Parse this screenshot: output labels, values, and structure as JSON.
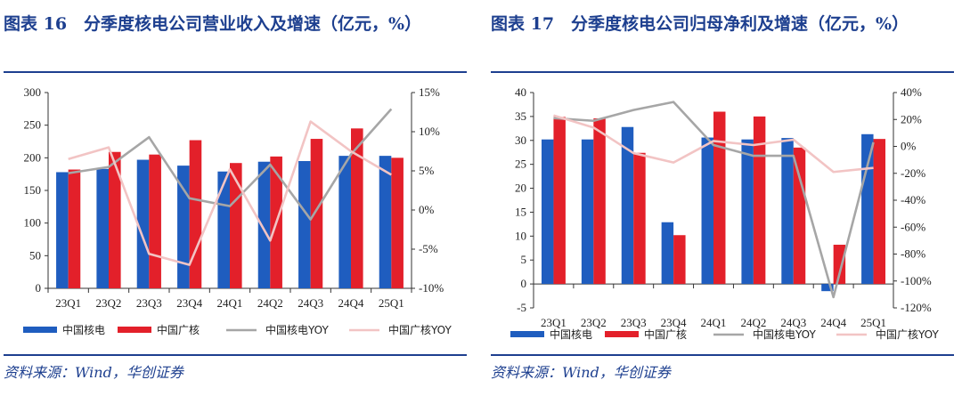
{
  "charts": [
    {
      "figure_title": "图表 16　分季度核电公司营业收入及增速（亿元，%）",
      "source": "资料来源：Wind，华创证券",
      "colors": {
        "cnnp": "#1f5dbf",
        "cgn": "#e3202a",
        "cnnp_yoy": "#a6a6a6",
        "cgn_yoy": "#f2c4c4"
      },
      "chart_data": {
        "type": "bar",
        "categories": [
          "23Q1",
          "23Q2",
          "23Q3",
          "23Q4",
          "24Q1",
          "24Q2",
          "24Q3",
          "24Q4",
          "25Q1"
        ],
        "series": [
          {
            "name": "中国核电",
            "kind": "bar",
            "axis": "left",
            "values": [
              178,
              183,
              197,
              188,
              179,
              194,
              195,
              203,
              203
            ]
          },
          {
            "name": "中国广核",
            "kind": "bar",
            "axis": "left",
            "values": [
              182,
              209,
              205,
              227,
              192,
              202,
              229,
              245,
              200
            ]
          },
          {
            "name": "中国核电YOY",
            "kind": "line",
            "axis": "right",
            "values": [
              4.7,
              5.5,
              9.3,
              1.5,
              0.5,
              5.8,
              -1.2,
              7.1,
              12.9
            ]
          },
          {
            "name": "中国广核YOY",
            "kind": "line",
            "axis": "right",
            "values": [
              6.5,
              8.0,
              -5.6,
              -7.0,
              5.2,
              -3.9,
              11.3,
              7.5,
              4.5
            ]
          }
        ],
        "ylim": [
          0,
          300
        ],
        "yticks": [
          "0",
          "50",
          "100",
          "150",
          "200",
          "250",
          "300"
        ],
        "y2lim": [
          -10,
          15
        ],
        "y2ticks": [
          "-10%",
          "-5%",
          "0%",
          "5%",
          "10%",
          "15%"
        ],
        "legend_position": "bottom",
        "grid": false
      }
    },
    {
      "figure_title": "图表 17　分季度核电公司归母净利及增速（亿元，%）",
      "source": "资料来源：Wind，华创证券",
      "colors": {
        "cnnp": "#1f5dbf",
        "cgn": "#e3202a",
        "cnnp_yoy": "#a6a6a6",
        "cgn_yoy": "#f2c4c4"
      },
      "chart_data": {
        "type": "bar",
        "categories": [
          "23Q1",
          "23Q2",
          "23Q3",
          "23Q4",
          "24Q1",
          "24Q2",
          "24Q3",
          "24Q4",
          "25Q1"
        ],
        "series": [
          {
            "name": "中国核电",
            "kind": "bar",
            "axis": "left",
            "values": [
              30.2,
              30.2,
              32.8,
              12.9,
              30.6,
              30.2,
              30.5,
              -1.5,
              31.3
            ]
          },
          {
            "name": "中国广核",
            "kind": "bar",
            "axis": "left",
            "values": [
              34.9,
              34.6,
              27.4,
              10.2,
              36.0,
              35.0,
              28.5,
              8.2,
              30.3
            ]
          },
          {
            "name": "中国核电YOY",
            "kind": "line",
            "axis": "right",
            "values": [
              21,
              19,
              27,
              33,
              1,
              -7,
              -7,
              -112,
              3
            ]
          },
          {
            "name": "中国广核YOY",
            "kind": "line",
            "axis": "right",
            "values": [
              23,
              14,
              -5,
              -12,
              4,
              1,
              5,
              -19,
              -16
            ]
          }
        ],
        "ylim": [
          -5,
          40
        ],
        "yticks": [
          "-5",
          "0",
          "5",
          "10",
          "15",
          "20",
          "25",
          "30",
          "35",
          "40"
        ],
        "y2lim": [
          -120,
          40
        ],
        "y2ticks": [
          "-120%",
          "-100%",
          "-80%",
          "-60%",
          "-40%",
          "-20%",
          "0%",
          "20%",
          "40%"
        ],
        "legend_position": "bottom",
        "grid": false
      }
    }
  ]
}
